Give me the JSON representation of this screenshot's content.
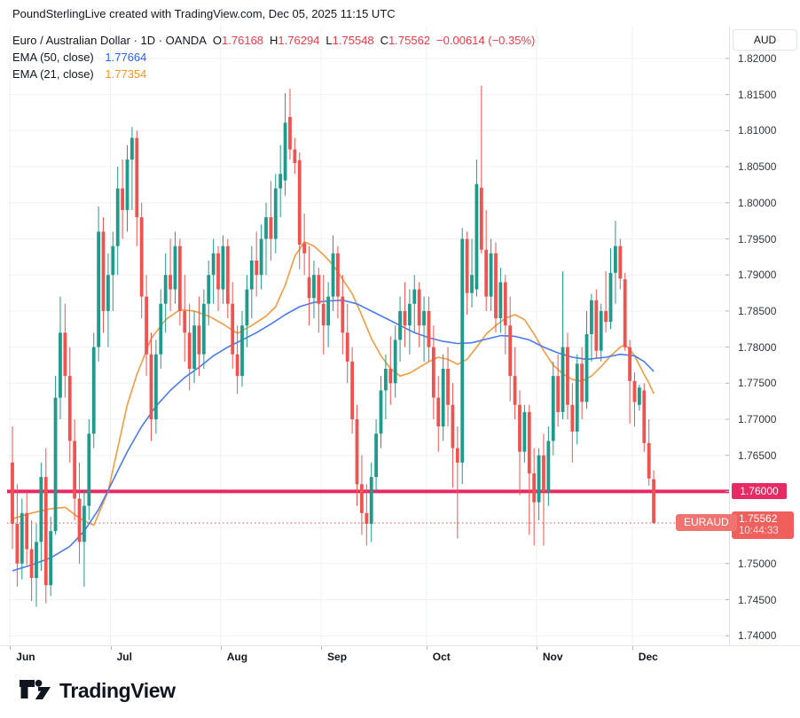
{
  "attribution": {
    "text": "PoundSterlingLive created with TradingView.com, Dec 05, 2025 11:15 UTC"
  },
  "legend": {
    "title": "Euro / Australian Dollar · 1D · OANDA",
    "ohlc": [
      {
        "label": "O",
        "value": "1.76168"
      },
      {
        "label": "H",
        "value": "1.76294"
      },
      {
        "label": "L",
        "value": "1.75548"
      },
      {
        "label": "C",
        "value": "1.75562"
      }
    ],
    "change": "−0.00614 (−0.35%)",
    "indicators": [
      {
        "label": "EMA (50, close)",
        "value": "1.77664"
      },
      {
        "label": "EMA (21, close)",
        "value": "1.77354"
      }
    ]
  },
  "price_scale": {
    "currency_button": "AUD",
    "tick_labels": [
      "1.82000",
      "1.81500",
      "1.81000",
      "1.80500",
      "1.80000",
      "1.79500",
      "1.79000",
      "1.78500",
      "1.78000",
      "1.77500",
      "1.77000",
      "1.76500",
      "1.76000",
      "1.75500",
      "1.75000",
      "1.74500",
      "1.74000"
    ],
    "level_badge": {
      "text": "1.76000"
    },
    "last_badge": {
      "price_text": "1.75562",
      "countdown": "10:44:33"
    }
  },
  "line_label": {
    "text": "EURAUD"
  },
  "time_scale": {
    "months": [
      "Jun",
      "Jul",
      "Aug",
      "Sep",
      "Oct",
      "Nov",
      "Dec"
    ]
  },
  "footer": {
    "brand": "TradingView"
  },
  "chart_data": {
    "type": "candlestick",
    "symbol": "EURAUD",
    "exchange": "OANDA",
    "timeframe": "1D",
    "title": "Euro / Australian Dollar",
    "y_axis": {
      "min": 1.7387,
      "max": 1.8244,
      "tick_step": 0.005,
      "ticks": [
        1.82,
        1.815,
        1.81,
        1.805,
        1.8,
        1.795,
        1.79,
        1.785,
        1.78,
        1.775,
        1.77,
        1.765,
        1.76,
        1.755,
        1.75,
        1.745,
        1.74
      ]
    },
    "grid": true,
    "legend_position": "top-left",
    "months": [
      {
        "label": "Jun",
        "start_index": 0
      },
      {
        "label": "Jul",
        "start_index": 21
      },
      {
        "label": "Aug",
        "start_index": 44
      },
      {
        "label": "Sep",
        "start_index": 65
      },
      {
        "label": "Oct",
        "start_index": 87
      },
      {
        "label": "Nov",
        "start_index": 110
      },
      {
        "label": "Dec",
        "start_index": 130
      }
    ],
    "horizontal_line": {
      "price": 1.76,
      "style": "solid",
      "color": "#e72a63"
    },
    "last_price_line": {
      "price": 1.75562,
      "style": "dotted",
      "color": "#ef5f5c",
      "label": "EURAUD",
      "countdown": "10:44:33"
    },
    "colors": {
      "up": "#209b8b",
      "down": "#ef5350",
      "ema50": "#4a7af0",
      "ema21": "#f79a3e",
      "level_line": "#e72a63",
      "last_line": "#ef5f5c",
      "line_tag_bg": "#f17370",
      "last_badge_bg": "#ef5f5c"
    },
    "candles": [
      [
        1.764,
        1.769,
        1.752,
        1.7555
      ],
      [
        1.7555,
        1.761,
        1.7468,
        1.75
      ],
      [
        1.75,
        1.759,
        1.7478,
        1.757
      ],
      [
        1.757,
        1.76,
        1.7498,
        1.752
      ],
      [
        1.752,
        1.756,
        1.7448,
        1.748
      ],
      [
        1.748,
        1.7555,
        1.744,
        1.753
      ],
      [
        1.753,
        1.764,
        1.749,
        1.762
      ],
      [
        1.762,
        1.766,
        1.7445,
        1.747
      ],
      [
        1.747,
        1.7565,
        1.7455,
        1.7545
      ],
      [
        1.7545,
        1.776,
        1.754,
        1.773
      ],
      [
        1.773,
        1.787,
        1.77,
        1.782
      ],
      [
        1.782,
        1.786,
        1.773,
        1.776
      ],
      [
        1.776,
        1.78,
        1.764,
        1.767
      ],
      [
        1.767,
        1.77,
        1.756,
        1.759
      ],
      [
        1.759,
        1.764,
        1.75,
        1.753
      ],
      [
        1.753,
        1.76,
        1.7468,
        1.758
      ],
      [
        1.758,
        1.77,
        1.756,
        1.768
      ],
      [
        1.768,
        1.782,
        1.766,
        1.78
      ],
      [
        1.78,
        1.7995,
        1.778,
        1.796
      ],
      [
        1.796,
        1.798,
        1.782,
        1.785
      ],
      [
        1.785,
        1.793,
        1.78,
        1.79
      ],
      [
        1.79,
        1.796,
        1.785,
        1.794
      ],
      [
        1.794,
        1.805,
        1.79,
        1.802
      ],
      [
        1.802,
        1.806,
        1.795,
        1.799
      ],
      [
        1.799,
        1.808,
        1.796,
        1.806
      ],
      [
        1.806,
        1.8105,
        1.799,
        1.809
      ],
      [
        1.809,
        1.81,
        1.794,
        1.798
      ],
      [
        1.798,
        1.8,
        1.784,
        1.787
      ],
      [
        1.787,
        1.79,
        1.776,
        1.779
      ],
      [
        1.779,
        1.782,
        1.767,
        1.77
      ],
      [
        1.77,
        1.781,
        1.768,
        1.779
      ],
      [
        1.779,
        1.788,
        1.777,
        1.786
      ],
      [
        1.786,
        1.793,
        1.782,
        1.79
      ],
      [
        1.79,
        1.795,
        1.785,
        1.788
      ],
      [
        1.788,
        1.796,
        1.786,
        1.794
      ],
      [
        1.794,
        1.795,
        1.783,
        1.785
      ],
      [
        1.785,
        1.79,
        1.778,
        1.782
      ],
      [
        1.782,
        1.786,
        1.774,
        1.777
      ],
      [
        1.777,
        1.785,
        1.775,
        1.783
      ],
      [
        1.783,
        1.787,
        1.776,
        1.779
      ],
      [
        1.779,
        1.788,
        1.777,
        1.786
      ],
      [
        1.786,
        1.792,
        1.783,
        1.79
      ],
      [
        1.79,
        1.795,
        1.786,
        1.793
      ],
      [
        1.793,
        1.794,
        1.785,
        1.788
      ],
      [
        1.788,
        1.7955,
        1.786,
        1.794
      ],
      [
        1.794,
        1.795,
        1.784,
        1.786
      ],
      [
        1.786,
        1.789,
        1.777,
        1.779
      ],
      [
        1.779,
        1.783,
        1.7735,
        1.776
      ],
      [
        1.776,
        1.785,
        1.7745,
        1.783
      ],
      [
        1.783,
        1.79,
        1.78,
        1.788
      ],
      [
        1.788,
        1.794,
        1.784,
        1.792
      ],
      [
        1.792,
        1.796,
        1.787,
        1.79
      ],
      [
        1.79,
        1.797,
        1.788,
        1.795
      ],
      [
        1.795,
        1.8,
        1.79,
        1.798
      ],
      [
        1.798,
        1.803,
        1.792,
        1.795
      ],
      [
        1.795,
        1.804,
        1.793,
        1.802
      ],
      [
        1.802,
        1.808,
        1.798,
        1.804
      ],
      [
        1.8031,
        1.8152,
        1.801,
        1.8111
      ],
      [
        1.8119,
        1.8158,
        1.806,
        1.8074
      ],
      [
        1.8074,
        1.809,
        1.804,
        1.8055
      ],
      [
        1.8059,
        1.807,
        1.7908,
        1.7942
      ],
      [
        1.7944,
        1.7985,
        1.79,
        1.793
      ],
      [
        1.7897,
        1.794,
        1.783,
        1.7868
      ],
      [
        1.7868,
        1.792,
        1.784,
        1.79
      ],
      [
        1.79,
        1.791,
        1.782,
        1.786
      ],
      [
        1.786,
        1.79,
        1.779,
        1.783
      ],
      [
        1.783,
        1.789,
        1.78,
        1.787
      ],
      [
        1.787,
        1.7955,
        1.785,
        1.793
      ],
      [
        1.793,
        1.794,
        1.784,
        1.787
      ],
      [
        1.787,
        1.79,
        1.779,
        1.782
      ],
      [
        1.782,
        1.786,
        1.775,
        1.778
      ],
      [
        1.778,
        1.78,
        1.768,
        1.77
      ],
      [
        1.77,
        1.772,
        1.758,
        1.761
      ],
      [
        1.761,
        1.765,
        1.754,
        1.757
      ],
      [
        1.757,
        1.761,
        1.7525,
        1.7555
      ],
      [
        1.7555,
        1.764,
        1.753,
        1.762
      ],
      [
        1.762,
        1.77,
        1.76,
        1.768
      ],
      [
        1.768,
        1.776,
        1.766,
        1.774
      ],
      [
        1.774,
        1.779,
        1.77,
        1.777
      ],
      [
        1.777,
        1.7815,
        1.772,
        1.775
      ],
      [
        1.775,
        1.783,
        1.773,
        1.781
      ],
      [
        1.781,
        1.787,
        1.778,
        1.785
      ],
      [
        1.785,
        1.789,
        1.78,
        1.783
      ],
      [
        1.783,
        1.788,
        1.779,
        1.786
      ],
      [
        1.786,
        1.79,
        1.782,
        1.788
      ],
      [
        1.788,
        1.789,
        1.78,
        1.783
      ],
      [
        1.783,
        1.787,
        1.778,
        1.785
      ],
      [
        1.785,
        1.787,
        1.778,
        1.78
      ],
      [
        1.78,
        1.783,
        1.77,
        1.773
      ],
      [
        1.773,
        1.776,
        1.7655,
        1.769
      ],
      [
        1.769,
        1.779,
        1.767,
        1.777
      ],
      [
        1.777,
        1.78,
        1.769,
        1.772
      ],
      [
        1.772,
        1.775,
        1.7605,
        1.766
      ],
      [
        1.766,
        1.769,
        1.7535,
        1.764
      ],
      [
        1.764,
        1.7965,
        1.761,
        1.795
      ],
      [
        1.795,
        1.796,
        1.7845,
        1.7875
      ],
      [
        1.7875,
        1.795,
        1.7855,
        1.79
      ],
      [
        1.788,
        1.806,
        1.787,
        1.8026
      ],
      [
        1.8021,
        1.8162,
        1.793,
        1.7935
      ],
      [
        1.7935,
        1.799,
        1.785,
        1.787
      ],
      [
        1.787,
        1.795,
        1.785,
        1.793
      ],
      [
        1.793,
        1.7945,
        1.782,
        1.784
      ],
      [
        1.784,
        1.791,
        1.782,
        1.789
      ],
      [
        1.789,
        1.79,
        1.779,
        1.783
      ],
      [
        1.783,
        1.787,
        1.7725,
        1.776
      ],
      [
        1.776,
        1.78,
        1.77,
        1.772
      ],
      [
        1.772,
        1.774,
        1.7595,
        1.7655
      ],
      [
        1.7655,
        1.772,
        1.764,
        1.771
      ],
      [
        1.771,
        1.772,
        1.754,
        1.7625
      ],
      [
        1.7625,
        1.766,
        1.7525,
        1.7585
      ],
      [
        1.7585,
        1.766,
        1.756,
        1.765
      ],
      [
        1.765,
        1.768,
        1.7525,
        1.76
      ],
      [
        1.76,
        1.769,
        1.758,
        1.767
      ],
      [
        1.767,
        1.778,
        1.765,
        1.776
      ],
      [
        1.776,
        1.779,
        1.769,
        1.771
      ],
      [
        1.771,
        1.7905,
        1.77,
        1.78
      ],
      [
        1.78,
        1.782,
        1.77,
        1.772
      ],
      [
        1.772,
        1.775,
        1.764,
        1.7683
      ],
      [
        1.7683,
        1.779,
        1.7665,
        1.7777
      ],
      [
        1.7777,
        1.78,
        1.77,
        1.7724
      ],
      [
        1.7724,
        1.785,
        1.7715,
        1.7818
      ],
      [
        1.7818,
        1.7874,
        1.778,
        1.7865
      ],
      [
        1.7865,
        1.788,
        1.7785,
        1.7795
      ],
      [
        1.7795,
        1.786,
        1.778,
        1.785
      ],
      [
        1.785,
        1.7905,
        1.782,
        1.7835
      ],
      [
        1.7835,
        1.7937,
        1.7825,
        1.7903
      ],
      [
        1.7903,
        1.7975,
        1.786,
        1.794
      ],
      [
        1.794,
        1.795,
        1.788,
        1.7895
      ],
      [
        1.7894,
        1.7903,
        1.7795,
        1.78
      ],
      [
        1.78,
        1.781,
        1.7694,
        1.7753
      ],
      [
        1.7753,
        1.7765,
        1.769,
        1.7724
      ],
      [
        1.772,
        1.7748,
        1.7712,
        1.7744
      ],
      [
        1.774,
        1.775,
        1.7655,
        1.7667
      ],
      [
        1.7667,
        1.77,
        1.7608,
        1.7618
      ],
      [
        1.76168,
        1.76294,
        1.75548,
        1.75562
      ]
    ],
    "ema50": {
      "period": 50,
      "last_value": 1.77664,
      "points": [
        [
          0,
          1.749
        ],
        [
          4,
          1.7498
        ],
        [
          8,
          1.7508
        ],
        [
          12,
          1.7524
        ],
        [
          15,
          1.7545
        ],
        [
          18,
          1.7575
        ],
        [
          21,
          1.7615
        ],
        [
          24,
          1.7655
        ],
        [
          27,
          1.769
        ],
        [
          30,
          1.7718
        ],
        [
          33,
          1.774
        ],
        [
          36,
          1.7758
        ],
        [
          39,
          1.7772
        ],
        [
          42,
          1.7788
        ],
        [
          45,
          1.78
        ],
        [
          48,
          1.781
        ],
        [
          51,
          1.782
        ],
        [
          54,
          1.7832
        ],
        [
          57,
          1.7845
        ],
        [
          60,
          1.7856
        ],
        [
          63,
          1.7862
        ],
        [
          66,
          1.7864
        ],
        [
          69,
          1.7865
        ],
        [
          72,
          1.786
        ],
        [
          75,
          1.785
        ],
        [
          78,
          1.784
        ],
        [
          81,
          1.783
        ],
        [
          84,
          1.782
        ],
        [
          87,
          1.7813
        ],
        [
          90,
          1.7808
        ],
        [
          93,
          1.7805
        ],
        [
          96,
          1.7806
        ],
        [
          99,
          1.7811
        ],
        [
          102,
          1.7816
        ],
        [
          105,
          1.7815
        ],
        [
          108,
          1.781
        ],
        [
          111,
          1.78
        ],
        [
          114,
          1.7792
        ],
        [
          117,
          1.7786
        ],
        [
          120,
          1.7783
        ],
        [
          124,
          1.7786
        ],
        [
          127,
          1.779
        ],
        [
          130,
          1.7788
        ],
        [
          132,
          1.778
        ],
        [
          134,
          1.77664
        ]
      ]
    },
    "ema21": {
      "period": 21,
      "last_value": 1.77354,
      "points": [
        [
          0,
          1.7562
        ],
        [
          4,
          1.757
        ],
        [
          8,
          1.7576
        ],
        [
          11,
          1.7578
        ],
        [
          14,
          1.7563
        ],
        [
          17,
          1.7553
        ],
        [
          20,
          1.76
        ],
        [
          22,
          1.766
        ],
        [
          24,
          1.772
        ],
        [
          26,
          1.7762
        ],
        [
          29,
          1.7812
        ],
        [
          32,
          1.7838
        ],
        [
          35,
          1.7852
        ],
        [
          38,
          1.785
        ],
        [
          41,
          1.7843
        ],
        [
          44,
          1.7832
        ],
        [
          47,
          1.7819
        ],
        [
          50,
          1.783
        ],
        [
          53,
          1.7843
        ],
        [
          55,
          1.7856
        ],
        [
          57,
          1.7886
        ],
        [
          59,
          1.7926
        ],
        [
          61,
          1.7946
        ],
        [
          63,
          1.794
        ],
        [
          65,
          1.7928
        ],
        [
          67,
          1.7914
        ],
        [
          69,
          1.7894
        ],
        [
          71,
          1.7874
        ],
        [
          73,
          1.7844
        ],
        [
          75,
          1.7812
        ],
        [
          77,
          1.7788
        ],
        [
          79,
          1.777
        ],
        [
          81,
          1.776
        ],
        [
          83,
          1.7764
        ],
        [
          85,
          1.7772
        ],
        [
          87,
          1.778
        ],
        [
          89,
          1.7786
        ],
        [
          91,
          1.7783
        ],
        [
          93,
          1.7776
        ],
        [
          95,
          1.7783
        ],
        [
          97,
          1.78
        ],
        [
          99,
          1.7818
        ],
        [
          101,
          1.783
        ],
        [
          103,
          1.784
        ],
        [
          105,
          1.7845
        ],
        [
          107,
          1.7838
        ],
        [
          109,
          1.7818
        ],
        [
          111,
          1.7795
        ],
        [
          113,
          1.7775
        ],
        [
          115,
          1.7763
        ],
        [
          117,
          1.7755
        ],
        [
          119,
          1.7753
        ],
        [
          121,
          1.776
        ],
        [
          123,
          1.7773
        ],
        [
          125,
          1.7788
        ],
        [
          127,
          1.78
        ],
        [
          128,
          1.7803
        ],
        [
          129,
          1.7797
        ],
        [
          130,
          1.7788
        ],
        [
          131,
          1.7775
        ],
        [
          132,
          1.7762
        ],
        [
          133,
          1.775
        ],
        [
          134,
          1.77354
        ]
      ]
    }
  }
}
